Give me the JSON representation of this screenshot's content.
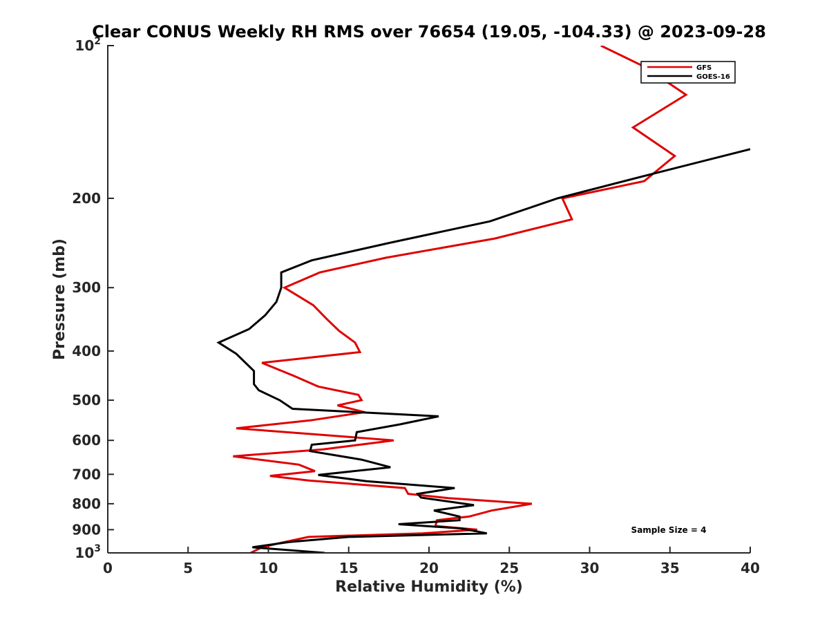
{
  "chart_data": {
    "type": "line",
    "title": "Clear CONUS Weekly RH RMS over 76654 (19.05, -104.33) @ 2023-09-28",
    "xlabel": "Relative Humidity (%)",
    "ylabel": "Pressure (mb)",
    "xlim": [
      0,
      40
    ],
    "ylim": [
      100,
      1000
    ],
    "yscale": "log",
    "y_reversed": true,
    "x_ticks": [
      0,
      5,
      10,
      15,
      20,
      25,
      30,
      35,
      40
    ],
    "x_tick_labels": [
      "0",
      "5",
      "10",
      "15",
      "20",
      "25",
      "30",
      "35",
      "40"
    ],
    "y_ticks": [
      {
        "value": 100,
        "base": "10",
        "exp": "2"
      },
      {
        "value": 200,
        "label": "200"
      },
      {
        "value": 300,
        "label": "300"
      },
      {
        "value": 400,
        "label": "400"
      },
      {
        "value": 500,
        "label": "500"
      },
      {
        "value": 600,
        "label": "600"
      },
      {
        "value": 700,
        "label": "700"
      },
      {
        "value": 800,
        "label": "800"
      },
      {
        "value": 900,
        "label": "900"
      },
      {
        "value": 1000,
        "base": "10",
        "exp": "3"
      }
    ],
    "legend": {
      "position": "top-right",
      "entries": [
        "GFS",
        "GOES-16"
      ]
    },
    "annotation": "Sample Size = 4",
    "series": [
      {
        "name": "GFS",
        "color": "#e00000",
        "points": [
          {
            "x": 30.7,
            "y": 100
          },
          {
            "x": 33.4,
            "y": 110
          },
          {
            "x": 36.0,
            "y": 125
          },
          {
            "x": 32.7,
            "y": 145
          },
          {
            "x": 35.3,
            "y": 165
          },
          {
            "x": 33.4,
            "y": 185
          },
          {
            "x": 28.3,
            "y": 200
          },
          {
            "x": 28.9,
            "y": 220
          },
          {
            "x": 24.1,
            "y": 240
          },
          {
            "x": 17.3,
            "y": 262
          },
          {
            "x": 13.2,
            "y": 280
          },
          {
            "x": 11.0,
            "y": 300
          },
          {
            "x": 12.8,
            "y": 325
          },
          {
            "x": 13.6,
            "y": 345
          },
          {
            "x": 14.4,
            "y": 365
          },
          {
            "x": 15.4,
            "y": 385
          },
          {
            "x": 15.7,
            "y": 402
          },
          {
            "x": 9.6,
            "y": 422
          },
          {
            "x": 11.6,
            "y": 448
          },
          {
            "x": 13.1,
            "y": 470
          },
          {
            "x": 15.6,
            "y": 488
          },
          {
            "x": 15.8,
            "y": 500
          },
          {
            "x": 14.3,
            "y": 512
          },
          {
            "x": 16.0,
            "y": 528
          },
          {
            "x": 12.6,
            "y": 548
          },
          {
            "x": 8.0,
            "y": 568
          },
          {
            "x": 17.8,
            "y": 600
          },
          {
            "x": 13.4,
            "y": 625
          },
          {
            "x": 7.8,
            "y": 645
          },
          {
            "x": 11.9,
            "y": 670
          },
          {
            "x": 12.9,
            "y": 690
          },
          {
            "x": 10.1,
            "y": 705
          },
          {
            "x": 12.5,
            "y": 720
          },
          {
            "x": 18.5,
            "y": 745
          },
          {
            "x": 18.7,
            "y": 765
          },
          {
            "x": 21.2,
            "y": 780
          },
          {
            "x": 26.4,
            "y": 800
          },
          {
            "x": 23.9,
            "y": 825
          },
          {
            "x": 22.5,
            "y": 848
          },
          {
            "x": 20.5,
            "y": 862
          },
          {
            "x": 20.4,
            "y": 885
          },
          {
            "x": 23.0,
            "y": 900
          },
          {
            "x": 19.6,
            "y": 915
          },
          {
            "x": 12.5,
            "y": 930
          },
          {
            "x": 10.8,
            "y": 955
          },
          {
            "x": 9.6,
            "y": 975
          },
          {
            "x": 8.9,
            "y": 1000
          }
        ]
      },
      {
        "name": "GOES-16",
        "color": "#000000",
        "points": [
          {
            "x": 40.0,
            "y": 160
          },
          {
            "x": 33.6,
            "y": 180
          },
          {
            "x": 28.0,
            "y": 200
          },
          {
            "x": 23.8,
            "y": 222
          },
          {
            "x": 17.5,
            "y": 245
          },
          {
            "x": 12.7,
            "y": 265
          },
          {
            "x": 10.8,
            "y": 280
          },
          {
            "x": 10.8,
            "y": 300
          },
          {
            "x": 10.5,
            "y": 320
          },
          {
            "x": 9.8,
            "y": 340
          },
          {
            "x": 8.8,
            "y": 362
          },
          {
            "x": 6.9,
            "y": 385
          },
          {
            "x": 8.0,
            "y": 405
          },
          {
            "x": 9.1,
            "y": 438
          },
          {
            "x": 9.1,
            "y": 465
          },
          {
            "x": 9.4,
            "y": 478
          },
          {
            "x": 10.7,
            "y": 500
          },
          {
            "x": 11.5,
            "y": 520
          },
          {
            "x": 20.6,
            "y": 538
          },
          {
            "x": 18.2,
            "y": 558
          },
          {
            "x": 15.5,
            "y": 578
          },
          {
            "x": 15.4,
            "y": 600
          },
          {
            "x": 12.7,
            "y": 612
          },
          {
            "x": 12.6,
            "y": 630
          },
          {
            "x": 15.8,
            "y": 655
          },
          {
            "x": 17.6,
            "y": 678
          },
          {
            "x": 13.1,
            "y": 702
          },
          {
            "x": 16.1,
            "y": 722
          },
          {
            "x": 21.6,
            "y": 745
          },
          {
            "x": 19.3,
            "y": 765
          },
          {
            "x": 19.5,
            "y": 778
          },
          {
            "x": 22.8,
            "y": 805
          },
          {
            "x": 20.3,
            "y": 825
          },
          {
            "x": 21.9,
            "y": 848
          },
          {
            "x": 21.9,
            "y": 862
          },
          {
            "x": 18.1,
            "y": 878
          },
          {
            "x": 22.0,
            "y": 895
          },
          {
            "x": 23.6,
            "y": 915
          },
          {
            "x": 15.0,
            "y": 930
          },
          {
            "x": 11.3,
            "y": 952
          },
          {
            "x": 9.0,
            "y": 975
          },
          {
            "x": 13.5,
            "y": 1000
          }
        ]
      }
    ]
  }
}
